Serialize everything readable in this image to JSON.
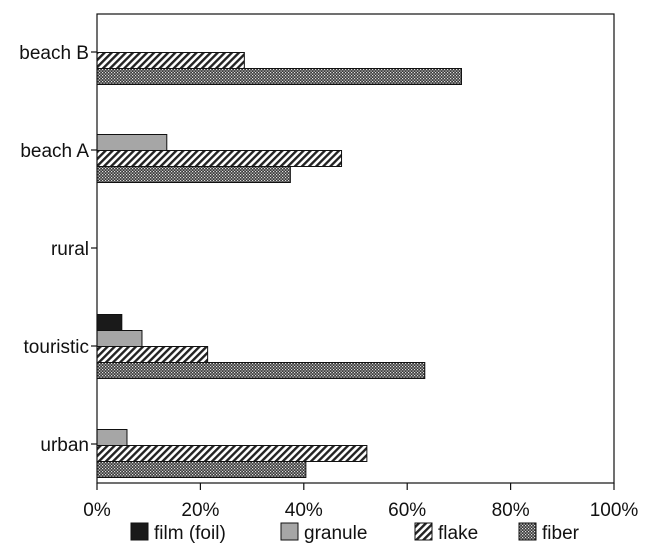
{
  "chart_data": {
    "type": "bar",
    "orientation": "horizontal",
    "categories": [
      "urban",
      "touristic",
      "rural",
      "beach A",
      "beach B"
    ],
    "series": [
      {
        "name": "film (foil)",
        "values": [
          0,
          4.8,
          0,
          0,
          0
        ]
      },
      {
        "name": "granule",
        "values": [
          5.8,
          8.7,
          0,
          13.5,
          0
        ]
      },
      {
        "name": "flake",
        "values": [
          52.2,
          21.4,
          0,
          47.3,
          28.5
        ]
      },
      {
        "name": "fiber",
        "values": [
          40.4,
          63.4,
          0,
          37.4,
          70.5
        ]
      }
    ],
    "xlim": [
      0,
      100
    ],
    "x_ticks": [
      "0%",
      "20%",
      "40%",
      "60%",
      "80%",
      "100%"
    ],
    "legend_position": "bottom",
    "grid": false,
    "colors": {
      "film (foil)": "#1a1a1a",
      "granule": "#a6a6a6",
      "flake": "hatch-diagonal",
      "fiber": "dense-dot"
    }
  }
}
